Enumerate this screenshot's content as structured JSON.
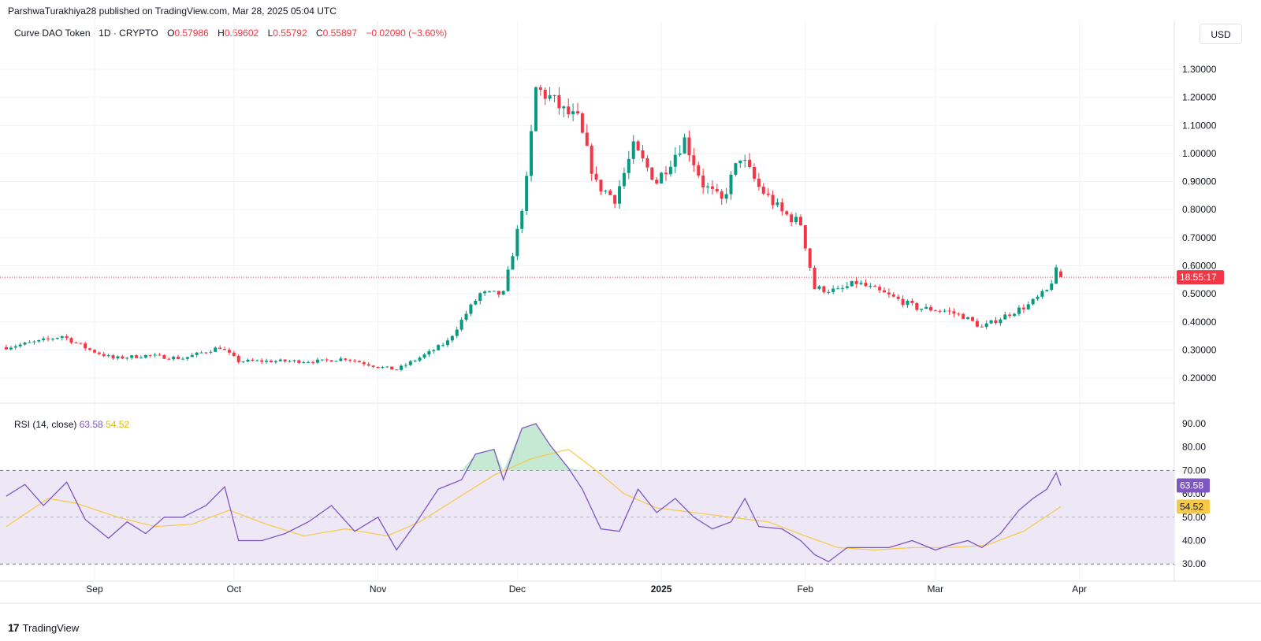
{
  "header": {
    "published_line": "ParshwaTurakhiya28 published on TradingView.com, Mar 28, 2025 05:04 UTC"
  },
  "legend": {
    "symbol": "Curve DAO Token · 1D · CRYPTO",
    "open_label": "O",
    "open": "0.57986",
    "high_label": "H",
    "high": "0.59602",
    "low_label": "L",
    "low": "0.55792",
    "close_label": "C",
    "close": "0.55897",
    "change": "−0.02090 (−3.60%)"
  },
  "currency_button": "USD",
  "price_axis": {
    "ticks": [
      "1.30000",
      "1.20000",
      "1.10000",
      "1.00000",
      "0.90000",
      "0.80000",
      "0.70000",
      "0.60000",
      "0.50000",
      "0.40000",
      "0.30000",
      "0.20000"
    ],
    "last_price_badge": "18:55:17"
  },
  "rsi": {
    "legend_title": "RSI (14, close)",
    "rsi_value": "63.58",
    "ma_value": "54.52",
    "ticks": [
      "90.00",
      "80.00",
      "70.00",
      "60.00",
      "50.00",
      "40.00",
      "30.00"
    ]
  },
  "time_axis": {
    "labels": [
      "Sep",
      "Oct",
      "Nov",
      "Dec",
      "2025",
      "Feb",
      "Mar",
      "Apr"
    ]
  },
  "brand": "TradingView",
  "colors": {
    "up": "#089981",
    "down": "#f23645",
    "rsi_line": "#7e57c2",
    "rsi_ma": "#f7c948",
    "rsi_band": "#ede7f6",
    "last_price": "#f23645"
  },
  "chart_data": [
    {
      "type": "candlestick",
      "title": "Curve DAO Token · 1D · CRYPTO",
      "x_range": [
        "2024-08-13",
        "2025-03-28"
      ],
      "ylim": [
        0.15,
        1.38
      ],
      "x_labels": [
        "Sep",
        "Oct",
        "Nov",
        "Dec",
        "2025",
        "Feb",
        "Mar",
        "Apr"
      ],
      "last_close": 0.55897,
      "close_anchors": [
        [
          "2024-08-13",
          0.31
        ],
        [
          "2024-08-20",
          0.33
        ],
        [
          "2024-08-25",
          0.35
        ],
        [
          "2024-08-31",
          0.3
        ],
        [
          "2024-09-05",
          0.27
        ],
        [
          "2024-09-12",
          0.28
        ],
        [
          "2024-09-20",
          0.27
        ],
        [
          "2024-09-28",
          0.31
        ],
        [
          "2024-10-02",
          0.26
        ],
        [
          "2024-10-10",
          0.26
        ],
        [
          "2024-10-20",
          0.26
        ],
        [
          "2024-10-25",
          0.27
        ],
        [
          "2024-11-01",
          0.24
        ],
        [
          "2024-11-05",
          0.23
        ],
        [
          "2024-11-12",
          0.29
        ],
        [
          "2024-11-16",
          0.33
        ],
        [
          "2024-11-20",
          0.43
        ],
        [
          "2024-11-23",
          0.5
        ],
        [
          "2024-11-28",
          0.5
        ],
        [
          "2024-12-01",
          0.72
        ],
        [
          "2024-12-03",
          0.9
        ],
        [
          "2024-12-05",
          1.23
        ],
        [
          "2024-12-08",
          1.2
        ],
        [
          "2024-12-11",
          1.15
        ],
        [
          "2024-12-14",
          1.12
        ],
        [
          "2024-12-18",
          0.89
        ],
        [
          "2024-12-22",
          0.84
        ],
        [
          "2024-12-26",
          1.02
        ],
        [
          "2024-12-31",
          0.9
        ],
        [
          "2025-01-06",
          1.05
        ],
        [
          "2025-01-10",
          0.89
        ],
        [
          "2025-01-14",
          0.83
        ],
        [
          "2025-01-18",
          0.99
        ],
        [
          "2025-01-22",
          0.88
        ],
        [
          "2025-01-27",
          0.79
        ],
        [
          "2025-01-31",
          0.75
        ],
        [
          "2025-02-03",
          0.52
        ],
        [
          "2025-02-08",
          0.51
        ],
        [
          "2025-02-12",
          0.54
        ],
        [
          "2025-02-18",
          0.5
        ],
        [
          "2025-02-25",
          0.45
        ],
        [
          "2025-03-03",
          0.44
        ],
        [
          "2025-03-07",
          0.42
        ],
        [
          "2025-03-11",
          0.38
        ],
        [
          "2025-03-17",
          0.43
        ],
        [
          "2025-03-21",
          0.46
        ],
        [
          "2025-03-25",
          0.51
        ],
        [
          "2025-03-27",
          0.58
        ],
        [
          "2025-03-28",
          0.55897
        ]
      ]
    },
    {
      "type": "line",
      "title": "RSI (14, close)",
      "ylim": [
        25,
        95
      ],
      "reference_lines": [
        70,
        50,
        30
      ],
      "series": [
        {
          "name": "RSI",
          "points": [
            [
              "2024-08-13",
              59
            ],
            [
              "2024-08-17",
              64
            ],
            [
              "2024-08-21",
              55
            ],
            [
              "2024-08-26",
              65
            ],
            [
              "2024-08-30",
              49
            ],
            [
              "2024-09-04",
              41
            ],
            [
              "2024-09-08",
              48
            ],
            [
              "2024-09-12",
              43
            ],
            [
              "2024-09-16",
              50
            ],
            [
              "2024-09-20",
              50
            ],
            [
              "2024-09-25",
              55
            ],
            [
              "2024-09-29",
              63
            ],
            [
              "2024-10-02",
              40
            ],
            [
              "2024-10-07",
              40
            ],
            [
              "2024-10-12",
              43
            ],
            [
              "2024-10-17",
              48
            ],
            [
              "2024-10-22",
              55
            ],
            [
              "2024-10-27",
              44
            ],
            [
              "2024-11-01",
              50
            ],
            [
              "2024-11-05",
              36
            ],
            [
              "2024-11-09",
              47
            ],
            [
              "2024-11-14",
              62
            ],
            [
              "2024-11-19",
              66
            ],
            [
              "2024-11-22",
              77
            ],
            [
              "2024-11-26",
              79
            ],
            [
              "2024-11-28",
              66
            ],
            [
              "2024-12-02",
              88
            ],
            [
              "2024-12-05",
              90
            ],
            [
              "2024-12-08",
              81
            ],
            [
              "2024-12-12",
              71
            ],
            [
              "2024-12-15",
              62
            ],
            [
              "2024-12-19",
              45
            ],
            [
              "2024-12-23",
              44
            ],
            [
              "2024-12-27",
              62
            ],
            [
              "2024-12-31",
              52
            ],
            [
              "2025-01-04",
              58
            ],
            [
              "2025-01-08",
              50
            ],
            [
              "2025-01-12",
              45
            ],
            [
              "2025-01-16",
              48
            ],
            [
              "2025-01-19",
              58
            ],
            [
              "2025-01-22",
              46
            ],
            [
              "2025-01-27",
              45
            ],
            [
              "2025-01-31",
              40
            ],
            [
              "2025-02-03",
              34
            ],
            [
              "2025-02-06",
              31
            ],
            [
              "2025-02-10",
              37
            ],
            [
              "2025-02-14",
              37
            ],
            [
              "2025-02-19",
              37
            ],
            [
              "2025-02-24",
              40
            ],
            [
              "2025-03-01",
              36
            ],
            [
              "2025-03-04",
              38
            ],
            [
              "2025-03-08",
              40
            ],
            [
              "2025-03-11",
              37
            ],
            [
              "2025-03-15",
              43
            ],
            [
              "2025-03-19",
              53
            ],
            [
              "2025-03-22",
              58
            ],
            [
              "2025-03-25",
              62
            ],
            [
              "2025-03-27",
              69
            ],
            [
              "2025-03-28",
              63.58
            ]
          ]
        },
        {
          "name": "RSI-based MA",
          "points": [
            [
              "2024-08-13",
              46
            ],
            [
              "2024-08-22",
              58
            ],
            [
              "2024-08-28",
              56
            ],
            [
              "2024-09-06",
              50
            ],
            [
              "2024-09-14",
              46
            ],
            [
              "2024-09-22",
              47
            ],
            [
              "2024-09-30",
              53
            ],
            [
              "2024-10-08",
              47
            ],
            [
              "2024-10-16",
              42
            ],
            [
              "2024-10-25",
              45
            ],
            [
              "2024-11-03",
              42
            ],
            [
              "2024-11-10",
              48
            ],
            [
              "2024-11-18",
              58
            ],
            [
              "2024-11-26",
              68
            ],
            [
              "2024-12-04",
              75
            ],
            [
              "2024-12-12",
              79
            ],
            [
              "2024-12-18",
              70
            ],
            [
              "2024-12-24",
              60
            ],
            [
              "2024-12-31",
              54
            ],
            [
              "2025-01-08",
              52
            ],
            [
              "2025-01-16",
              50
            ],
            [
              "2025-01-24",
              48
            ],
            [
              "2025-02-01",
              42
            ],
            [
              "2025-02-08",
              37
            ],
            [
              "2025-02-16",
              36
            ],
            [
              "2025-02-24",
              37
            ],
            [
              "2025-03-04",
              37
            ],
            [
              "2025-03-12",
              38
            ],
            [
              "2025-03-20",
              44
            ],
            [
              "2025-03-28",
              54.52
            ]
          ]
        }
      ]
    }
  ]
}
